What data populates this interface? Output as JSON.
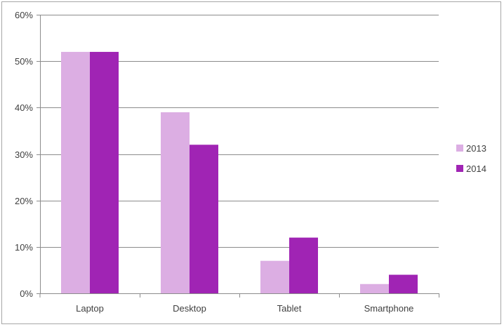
{
  "chart_data": {
    "type": "bar",
    "title": "",
    "xlabel": "",
    "ylabel": "",
    "categories": [
      "Laptop",
      "Desktop",
      "Tablet",
      "Smartphone"
    ],
    "series": [
      {
        "name": "2013",
        "color": "#dcaee3",
        "values": [
          52,
          39,
          7,
          2
        ]
      },
      {
        "name": "2014",
        "color": "#a024b4",
        "values": [
          52,
          32,
          12,
          4
        ]
      }
    ],
    "ylim": [
      0,
      60
    ],
    "yticks": [
      "0%",
      "10%",
      "20%",
      "30%",
      "40%",
      "50%",
      "60%"
    ],
    "grid": true,
    "legend_position": "right"
  }
}
